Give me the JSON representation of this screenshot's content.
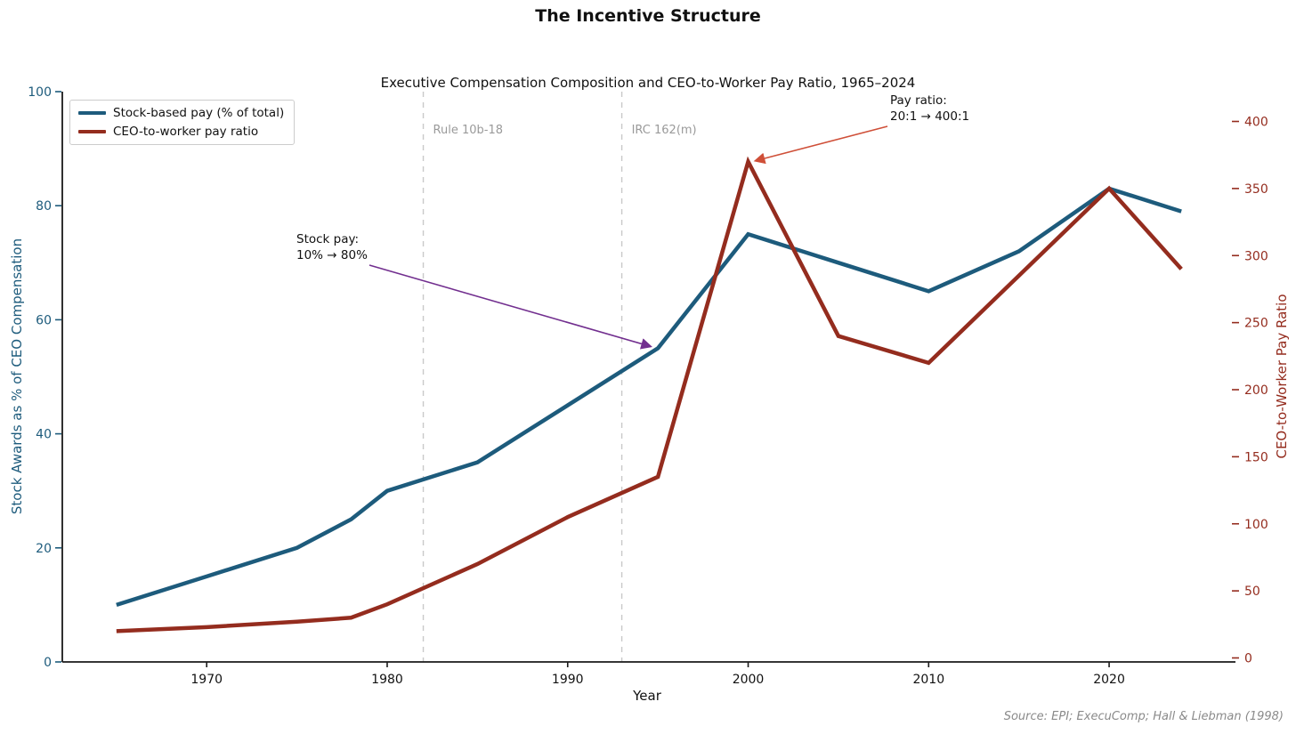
{
  "header": {
    "title": "The Incentive Structure",
    "subtitle": "Executive Compensation Composition and CEO-to-Worker Pay Ratio, 1965–2024"
  },
  "colors": {
    "stock_line": "#1d5b7c",
    "ratio_line": "#942c1e",
    "axis_left_text": "#1d5b7c",
    "axis_right_text": "#942c1e",
    "spine": "#1a1a1a",
    "event_line": "#c9c9c9",
    "event_label": "#9a9a9a",
    "purple_arrow": "#722f8f",
    "red_arrow": "#cf4f38",
    "source_text": "#8a8a8a"
  },
  "legend": {
    "items": [
      {
        "label": "Stock-based pay (% of total)",
        "color": "#1d5b7c"
      },
      {
        "label": "CEO-to-worker pay ratio",
        "color": "#942c1e"
      }
    ]
  },
  "axes": {
    "x_label": "Year",
    "y_left_label": "Stock Awards as % of CEO Compensation",
    "y_right_label": "CEO-to-Worker Pay Ratio"
  },
  "annotations": {
    "stock_pay": {
      "line1": "Stock pay:",
      "line2": "10% → 80%",
      "target_year": 1995,
      "target_value": 55,
      "axis": "left"
    },
    "pay_ratio": {
      "line1": "Pay ratio:",
      "line2": "20:1 → 400:1",
      "target_year": 2000,
      "target_value": 370,
      "axis": "right"
    }
  },
  "source": "Source: EPI; ExecuComp; Hall & Liebman (1998)",
  "chart_data": {
    "type": "line",
    "title": "Executive Compensation Composition and CEO-to-Worker Pay Ratio, 1965–2024",
    "xlabel": "Year",
    "x": [
      1965,
      1970,
      1975,
      1978,
      1980,
      1985,
      1990,
      1995,
      2000,
      2005,
      2010,
      2015,
      2020,
      2024
    ],
    "series": [
      {
        "name": "Stock-based pay (% of total)",
        "axis": "left",
        "ylabel": "Stock Awards as % of CEO Compensation",
        "ylim": [
          0,
          100
        ],
        "values": [
          10,
          15,
          20,
          25,
          30,
          35,
          45,
          55,
          75,
          70,
          65,
          72,
          83,
          79
        ]
      },
      {
        "name": "CEO-to-worker pay ratio",
        "axis": "right",
        "ylabel": "CEO-to-Worker Pay Ratio",
        "ylim": [
          0,
          422
        ],
        "values": [
          20,
          23,
          27,
          30,
          40,
          70,
          105,
          135,
          370,
          240,
          220,
          285,
          350,
          290
        ]
      }
    ],
    "xlim": [
      1962,
      2027
    ],
    "x_ticks": [
      1970,
      1980,
      1990,
      2000,
      2010,
      2020
    ],
    "y_left_ticks": [
      0,
      20,
      40,
      60,
      80,
      100
    ],
    "y_right_ticks": [
      0,
      50,
      100,
      150,
      200,
      250,
      300,
      350,
      400
    ],
    "vlines": [
      {
        "year": 1982,
        "label": "Rule 10b-18"
      },
      {
        "year": 1993,
        "label": "IRC 162(m)"
      }
    ],
    "legend_position": "upper left",
    "grid": false
  }
}
